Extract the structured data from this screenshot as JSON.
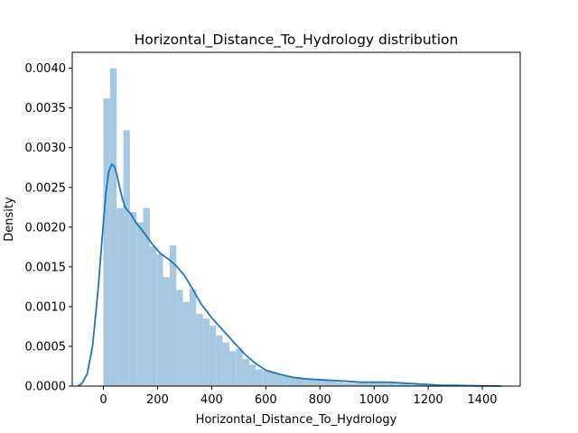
{
  "chart_data": {
    "type": "bar",
    "title": "Horizontal_Distance_To_Hydrology distribution",
    "xlabel": "Horizontal_Distance_To_Hydrology",
    "ylabel": "Density",
    "xlim": [
      -115,
      1540
    ],
    "ylim": [
      0,
      0.0042
    ],
    "grid": false,
    "x_ticks": [
      0,
      200,
      400,
      600,
      800,
      1000,
      1200,
      1400
    ],
    "y_ticks": [
      0.0,
      0.0005,
      0.001,
      0.0015,
      0.002,
      0.0025,
      0.003,
      0.0035,
      0.004
    ],
    "y_tick_labels": [
      "0.0000",
      "0.0005",
      "0.0010",
      "0.0015",
      "0.0020",
      "0.0025",
      "0.0030",
      "0.0035",
      "0.0040"
    ],
    "colors": {
      "bar": "#a6c8e0",
      "kde": "#1f77b4"
    },
    "histogram": {
      "bin_width": 24.5,
      "bin_start": 0,
      "densities": [
        0.00362,
        0.004,
        0.00224,
        0.00322,
        0.00219,
        0.00206,
        0.00224,
        0.00176,
        0.00166,
        0.00137,
        0.00177,
        0.00121,
        0.00106,
        0.00122,
        0.00091,
        0.00085,
        0.00076,
        0.00064,
        0.00055,
        0.00044,
        0.00047,
        0.00034,
        0.00027,
        0.00021,
        0.00019,
        0.00018,
        0.00015,
        0.00013,
        0.00011,
        0.00011,
        0.0001,
        9e-05,
        8e-05,
        7e-05,
        6e-05,
        5e-05,
        4e-05,
        4e-05,
        4e-05,
        4e-05,
        4e-05,
        4e-05,
        4e-05,
        4e-05,
        3e-05,
        3e-05,
        2e-05,
        2e-05,
        2e-05,
        1e-05,
        1e-05,
        1e-05,
        1e-05,
        1e-05,
        1e-05,
        1e-05,
        1e-05,
        1e-05
      ]
    },
    "kde": {
      "x": [
        -95,
        -80,
        -60,
        -40,
        -20,
        0,
        10,
        20,
        30,
        40,
        50,
        60,
        70,
        80,
        100,
        120,
        150,
        180,
        210,
        240,
        270,
        300,
        330,
        360,
        400,
        440,
        480,
        520,
        560,
        600,
        650,
        700,
        750,
        800,
        850,
        900,
        950,
        1000,
        1050,
        1100,
        1150,
        1200,
        1250,
        1300,
        1350,
        1400,
        1450,
        1470
      ],
      "y": [
        0.0,
        3e-05,
        0.00015,
        0.0005,
        0.0012,
        0.00205,
        0.00245,
        0.0027,
        0.00279,
        0.00277,
        0.00266,
        0.0025,
        0.00236,
        0.00225,
        0.00217,
        0.00206,
        0.00193,
        0.00179,
        0.00167,
        0.0016,
        0.00151,
        0.00139,
        0.00122,
        0.00104,
        0.00086,
        0.00071,
        0.00056,
        0.00041,
        0.00029,
        0.0002,
        0.00015,
        0.00011,
        9e-05,
        8e-05,
        7e-05,
        6e-05,
        5e-05,
        5e-05,
        5e-05,
        4e-05,
        3e-05,
        2e-05,
        1e-05,
        1e-05,
        5e-06,
        2e-06,
        1e-06,
        0.0
      ]
    }
  }
}
